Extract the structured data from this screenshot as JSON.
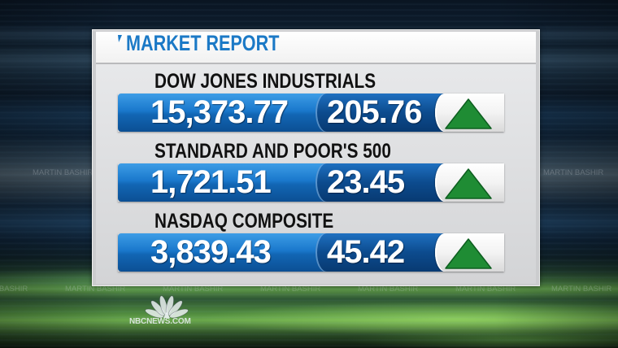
{
  "graphic": {
    "title": "MARKET REPORT",
    "title_accent_icon": "title-accent-icon"
  },
  "market_rows": [
    {
      "label": "DOW JONES INDUSTRIALS",
      "value": "15,373.77",
      "change": "205.76",
      "trend_icon": "up-triangle-icon"
    },
    {
      "label": "STANDARD AND POOR'S 500",
      "value": "1,721.51",
      "change": "23.45",
      "trend_icon": "up-triangle-icon"
    },
    {
      "label": "NASDAQ COMPOSITE",
      "value": "3,839.43",
      "change": "45.42",
      "trend_icon": "up-triangle-icon"
    }
  ],
  "branding": {
    "logo_icon": "nbc-peacock-icon",
    "logo_text": "NBCNEWS.COM"
  },
  "watermark": {
    "text": "MARTIN BASHIR"
  },
  "colors": {
    "title_blue": "#1b79c6",
    "bar_blue": "#1a78cc",
    "bar_navy": "#0c4b8e",
    "trend_up_green": "#1f8c34",
    "panel_gray": "#e7e8ea"
  }
}
